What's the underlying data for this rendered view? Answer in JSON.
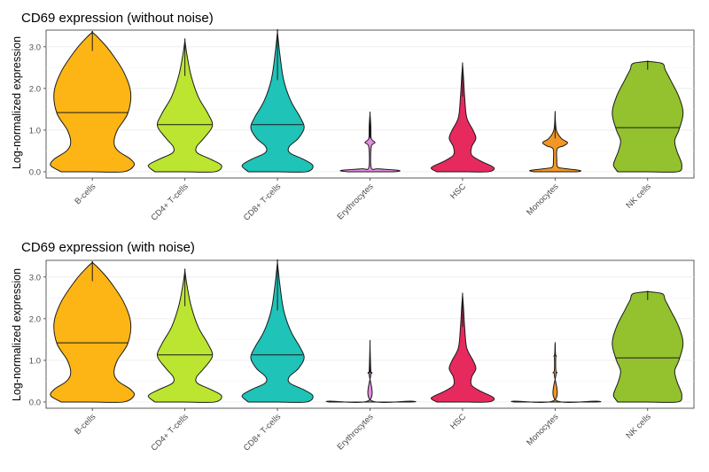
{
  "chart_data": [
    {
      "type": "violin",
      "title": "CD69 expression (without noise)",
      "ylabel": "Log-normalized expression",
      "ylim": [
        -0.15,
        3.4
      ],
      "yticks": [
        "0.0",
        "1.0",
        "2.0",
        "3.0"
      ],
      "ytick_values": [
        0,
        1,
        2,
        3
      ],
      "grid": true,
      "categories": [
        "B-cells",
        "CD4+ T-cells",
        "CD8+ T-cells",
        "Erythrocytes",
        "HSC",
        "Monocytes",
        "NK cells"
      ],
      "colors": [
        "#FDB515",
        "#BBE530",
        "#1FC3B8",
        "#E38EE0",
        "#E62A5E",
        "#F29625",
        "#93C22E"
      ],
      "medians": [
        1.42,
        1.13,
        1.13,
        null,
        null,
        null,
        1.06
      ],
      "max": [
        3.35,
        3.15,
        3.35,
        1.4,
        2.58,
        1.4,
        2.65
      ],
      "density_profiles": [
        [
          [
            0,
            0.75
          ],
          [
            0.15,
            1
          ],
          [
            0.3,
            0.92
          ],
          [
            0.5,
            0.62
          ],
          [
            0.7,
            0.52
          ],
          [
            1.0,
            0.6
          ],
          [
            1.4,
            0.85
          ],
          [
            1.9,
            0.92
          ],
          [
            2.4,
            0.75
          ],
          [
            2.9,
            0.42
          ],
          [
            3.2,
            0.16
          ],
          [
            3.35,
            0
          ]
        ],
        [
          [
            0,
            0.72
          ],
          [
            0.15,
            0.88
          ],
          [
            0.3,
            0.62
          ],
          [
            0.45,
            0.3
          ],
          [
            0.6,
            0.28
          ],
          [
            0.8,
            0.45
          ],
          [
            1.1,
            0.66
          ],
          [
            1.4,
            0.55
          ],
          [
            1.8,
            0.32
          ],
          [
            2.3,
            0.15
          ],
          [
            2.8,
            0.05
          ],
          [
            3.15,
            0
          ]
        ],
        [
          [
            0,
            0.7
          ],
          [
            0.15,
            0.85
          ],
          [
            0.3,
            0.62
          ],
          [
            0.45,
            0.3
          ],
          [
            0.6,
            0.28
          ],
          [
            0.8,
            0.5
          ],
          [
            1.05,
            0.64
          ],
          [
            1.3,
            0.55
          ],
          [
            1.7,
            0.32
          ],
          [
            2.2,
            0.15
          ],
          [
            2.8,
            0.06
          ],
          [
            3.35,
            0
          ]
        ],
        [
          [
            0,
            0.55
          ],
          [
            0.03,
            0.7
          ],
          [
            0.07,
            0.2
          ],
          [
            0.1,
            0.03
          ],
          [
            0.6,
            0.03
          ],
          [
            0.7,
            0.12
          ],
          [
            0.8,
            0.03
          ],
          [
            1.1,
            0.02
          ],
          [
            1.4,
            0
          ]
        ],
        [
          [
            0,
            0.62
          ],
          [
            0.1,
            0.75
          ],
          [
            0.25,
            0.45
          ],
          [
            0.4,
            0.22
          ],
          [
            0.6,
            0.22
          ],
          [
            0.8,
            0.32
          ],
          [
            1.0,
            0.25
          ],
          [
            1.3,
            0.1
          ],
          [
            1.8,
            0.05
          ],
          [
            2.3,
            0.02
          ],
          [
            2.58,
            0
          ]
        ],
        [
          [
            0,
            0.5
          ],
          [
            0.03,
            0.6
          ],
          [
            0.08,
            0.2
          ],
          [
            0.12,
            0.06
          ],
          [
            0.3,
            0.04
          ],
          [
            0.55,
            0.05
          ],
          [
            0.62,
            0.2
          ],
          [
            0.7,
            0.3
          ],
          [
            0.8,
            0.15
          ],
          [
            1.0,
            0.03
          ],
          [
            1.4,
            0
          ]
        ],
        [
          [
            0,
            0.72
          ],
          [
            0.15,
            0.82
          ],
          [
            0.3,
            0.78
          ],
          [
            0.5,
            0.7
          ],
          [
            0.75,
            0.65
          ],
          [
            1.0,
            0.75
          ],
          [
            1.4,
            0.85
          ],
          [
            1.8,
            0.75
          ],
          [
            2.2,
            0.55
          ],
          [
            2.45,
            0.42
          ],
          [
            2.6,
            0.35
          ],
          [
            2.65,
            0
          ]
        ]
      ]
    },
    {
      "type": "violin",
      "title": "CD69 expression (with noise)",
      "ylabel": "Log-normalized expression",
      "ylim": [
        -0.15,
        3.4
      ],
      "yticks": [
        "0.0",
        "1.0",
        "2.0",
        "3.0"
      ],
      "ytick_values": [
        0,
        1,
        2,
        3
      ],
      "grid": true,
      "categories": [
        "B-cells",
        "CD4+ T-cells",
        "CD8+ T-cells",
        "Erythrocytes",
        "HSC",
        "Monocytes",
        "NK cells"
      ],
      "colors": [
        "#FDB515",
        "#BBE530",
        "#1FC3B8",
        "#E38EE0",
        "#E62A5E",
        "#F29625",
        "#93C22E"
      ],
      "medians": [
        1.42,
        1.13,
        1.13,
        null,
        null,
        null,
        1.06
      ],
      "max": [
        3.35,
        3.15,
        3.35,
        1.4,
        2.58,
        1.4,
        2.65
      ],
      "density_profiles": [
        [
          [
            0,
            0.75
          ],
          [
            0.15,
            1
          ],
          [
            0.3,
            0.92
          ],
          [
            0.5,
            0.62
          ],
          [
            0.7,
            0.52
          ],
          [
            1.0,
            0.6
          ],
          [
            1.4,
            0.85
          ],
          [
            1.9,
            0.92
          ],
          [
            2.4,
            0.75
          ],
          [
            2.9,
            0.42
          ],
          [
            3.2,
            0.16
          ],
          [
            3.35,
            0
          ]
        ],
        [
          [
            0,
            0.72
          ],
          [
            0.15,
            0.88
          ],
          [
            0.3,
            0.62
          ],
          [
            0.45,
            0.3
          ],
          [
            0.6,
            0.28
          ],
          [
            0.8,
            0.45
          ],
          [
            1.1,
            0.66
          ],
          [
            1.4,
            0.55
          ],
          [
            1.8,
            0.32
          ],
          [
            2.3,
            0.15
          ],
          [
            2.8,
            0.05
          ],
          [
            3.15,
            0
          ]
        ],
        [
          [
            0,
            0.7
          ],
          [
            0.15,
            0.85
          ],
          [
            0.3,
            0.62
          ],
          [
            0.45,
            0.3
          ],
          [
            0.6,
            0.28
          ],
          [
            0.8,
            0.5
          ],
          [
            1.05,
            0.64
          ],
          [
            1.3,
            0.55
          ],
          [
            1.7,
            0.32
          ],
          [
            2.2,
            0.15
          ],
          [
            2.8,
            0.06
          ],
          [
            3.35,
            0
          ]
        ],
        [
          [
            0,
            0.98
          ],
          [
            0.02,
            0.98
          ],
          [
            0.04,
            0.02
          ],
          [
            0.65,
            0.02
          ],
          [
            0.7,
            0.05
          ],
          [
            0.75,
            0.02
          ],
          [
            1.4,
            0
          ]
        ],
        [
          [
            0,
            0.62
          ],
          [
            0.1,
            0.75
          ],
          [
            0.25,
            0.45
          ],
          [
            0.4,
            0.22
          ],
          [
            0.6,
            0.22
          ],
          [
            0.8,
            0.32
          ],
          [
            1.0,
            0.25
          ],
          [
            1.3,
            0.1
          ],
          [
            1.8,
            0.05
          ],
          [
            2.3,
            0.02
          ],
          [
            2.58,
            0
          ]
        ],
        [
          [
            0,
            0.98
          ],
          [
            0.02,
            0.98
          ],
          [
            0.04,
            0.02
          ],
          [
            0.65,
            0.02
          ],
          [
            0.7,
            0.05
          ],
          [
            0.75,
            0.02
          ],
          [
            1.05,
            0.015
          ],
          [
            1.1,
            0.03
          ],
          [
            1.15,
            0.01
          ],
          [
            1.4,
            0
          ]
        ],
        [
          [
            0,
            0.72
          ],
          [
            0.15,
            0.82
          ],
          [
            0.3,
            0.78
          ],
          [
            0.5,
            0.7
          ],
          [
            0.75,
            0.65
          ],
          [
            1.0,
            0.75
          ],
          [
            1.4,
            0.85
          ],
          [
            1.8,
            0.75
          ],
          [
            2.2,
            0.55
          ],
          [
            2.45,
            0.42
          ],
          [
            2.6,
            0.35
          ],
          [
            2.65,
            0
          ]
        ]
      ]
    }
  ]
}
